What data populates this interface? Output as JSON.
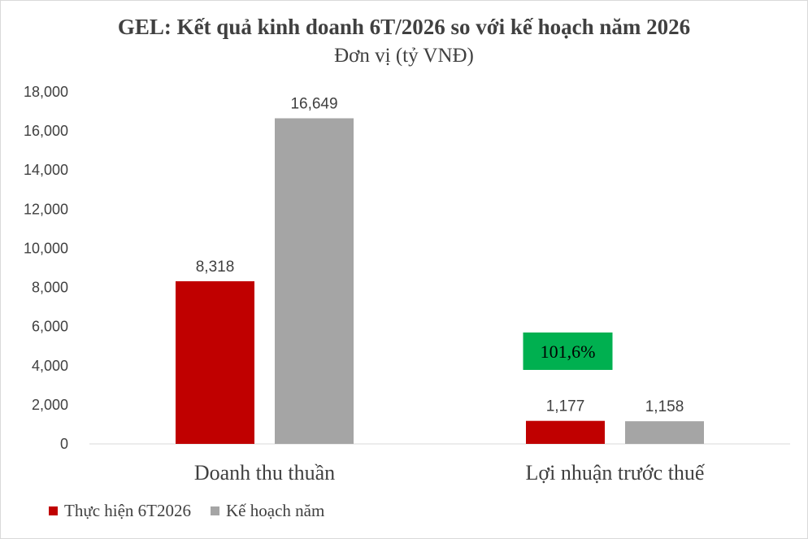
{
  "chart_data": {
    "type": "bar",
    "title": "GEL: Kết quả kinh doanh 6T/2026 so với kế hoạch năm 2026",
    "subtitle": "Đơn vị (tỷ VNĐ)",
    "categories": [
      "Doanh thu thuần",
      "Lợi nhuận trước thuế"
    ],
    "series": [
      {
        "name": "Thực hiện 6T2026",
        "values": [
          8318,
          1177
        ],
        "labels": [
          "8,318",
          "1,177"
        ],
        "color": "#c00000"
      },
      {
        "name": "Kế hoạch năm",
        "values": [
          16649,
          1158
        ],
        "labels": [
          "16,649",
          "1,158"
        ],
        "color": "#a5a5a5"
      }
    ],
    "ylim": [
      0,
      18000
    ],
    "yticks": [
      0,
      2000,
      4000,
      6000,
      8000,
      10000,
      12000,
      14000,
      16000,
      18000
    ],
    "ytick_labels": [
      "0",
      "2,000",
      "4,000",
      "6,000",
      "8,000",
      "10,000",
      "12,000",
      "14,000",
      "16,000",
      "18,000"
    ],
    "grid": false,
    "legend": "bottom-left",
    "annotation": {
      "text": "101,6%",
      "category_index": 1,
      "color": "#00b050"
    }
  }
}
